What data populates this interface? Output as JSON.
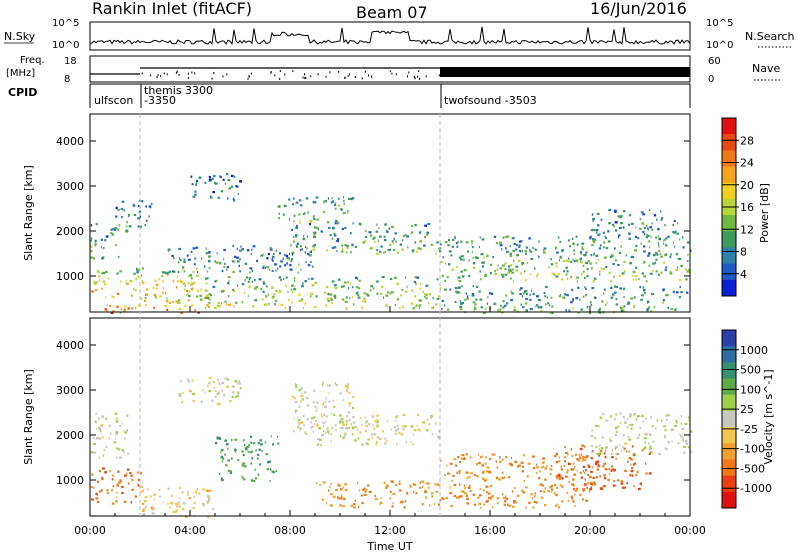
{
  "header": {
    "station": "Rankin Inlet (fitACF)",
    "beam": "Beam 07",
    "date": "16/Jun/2016"
  },
  "top_panels": {
    "nsky_label": "N.Sky",
    "nsearch_label": "N.Search",
    "nsky_ticks": [
      "10^5",
      "10^0"
    ],
    "nsearch_ticks": [
      "10^5",
      "10^0"
    ],
    "freq_label_1": "Freq.",
    "freq_label_2": "[MHz]",
    "freq_ticks": [
      "18",
      "8"
    ],
    "nave_label": "Nave",
    "nave_ticks": [
      "60",
      "0"
    ],
    "cpid_label": "CPID",
    "cpid_segments": [
      {
        "label": "ulfscon",
        "start_h": 0.0,
        "end_h": 2.0
      },
      {
        "label": "themis 3300",
        "start_h": 2.0,
        "end_h": 14.0
      },
      {
        "label": "-3350",
        "start_h": 2.0,
        "end_h": 14.0
      },
      {
        "label": "twofsound -3503",
        "start_h": 14.0,
        "end_h": 24.0
      }
    ]
  },
  "power_colorbar": {
    "label": "Power [dB]",
    "ticks": [
      "4",
      "8",
      "12",
      "16",
      "20",
      "24",
      "28"
    ],
    "colors": [
      "#0a1fd6",
      "#2058c8",
      "#2f7fa8",
      "#3f9a5e",
      "#6fb843",
      "#b8d637",
      "#f0d020",
      "#f4a51c",
      "#f07818",
      "#e84a16",
      "#e01010"
    ]
  },
  "velocity_colorbar": {
    "label": "Velocity [m s^-1]",
    "ticks": [
      "1000",
      "500",
      "100",
      "25",
      "-25",
      "-100",
      "-500",
      "-1000"
    ],
    "colors": [
      "#2b3fa8",
      "#2e6fa0",
      "#3a8f6e",
      "#5faa4a",
      "#9fd04a",
      "#c8c8c0",
      "#f0c850",
      "#f0a030",
      "#f07818",
      "#e84010",
      "#e01010"
    ]
  },
  "chart_data": {
    "type": "heatmap",
    "x_ticks": [
      "00:00",
      "04:00",
      "08:00",
      "12:00",
      "16:00",
      "20:00",
      "00:00"
    ],
    "x_tick_hours": [
      0,
      4,
      8,
      12,
      16,
      20,
      24
    ],
    "xlabel": "Time UT",
    "xlim": [
      0,
      24
    ],
    "panels": [
      {
        "name": "power",
        "ylabel": "Slant Range [km]",
        "y_ticks": [
          "1000",
          "2000",
          "3000",
          "4000"
        ],
        "ylim": [
          200,
          4600
        ],
        "echo_regions": [
          {
            "t0": 0.0,
            "t1": 1.2,
            "r0": 1400,
            "r1": 2200,
            "level": 0.35
          },
          {
            "t0": 0.0,
            "t1": 4.5,
            "r0": 600,
            "r1": 1200,
            "level": 0.7
          },
          {
            "t0": 0.5,
            "t1": 4.8,
            "r0": 200,
            "r1": 600,
            "level": 0.9
          },
          {
            "t0": 1.0,
            "t1": 2.5,
            "r0": 2000,
            "r1": 2700,
            "level": 0.3
          },
          {
            "t0": 4.0,
            "t1": 6.0,
            "r0": 2700,
            "r1": 3300,
            "level": 0.2
          },
          {
            "t0": 7.5,
            "t1": 10.5,
            "r0": 2200,
            "r1": 2800,
            "level": 0.45
          },
          {
            "t0": 8.0,
            "t1": 14.0,
            "r0": 1500,
            "r1": 2200,
            "level": 0.4
          },
          {
            "t0": 3.0,
            "t1": 9.0,
            "r0": 1100,
            "r1": 1700,
            "level": 0.25
          },
          {
            "t0": 4.5,
            "t1": 14.0,
            "r0": 300,
            "r1": 1000,
            "level": 0.55
          },
          {
            "t0": 14.0,
            "t1": 24.0,
            "r0": 900,
            "r1": 1900,
            "level": 0.45
          },
          {
            "t0": 14.0,
            "t1": 24.0,
            "r0": 200,
            "r1": 800,
            "level": 0.35
          },
          {
            "t0": 20.0,
            "t1": 23.5,
            "r0": 1800,
            "r1": 2500,
            "level": 0.3
          }
        ]
      },
      {
        "name": "velocity",
        "ylabel": "Slant Range [km]",
        "y_ticks": [
          "1000",
          "2000",
          "3000",
          "4000"
        ],
        "ylim": [
          200,
          4600
        ],
        "echo_regions": [
          {
            "t0": 0.0,
            "t1": 2.0,
            "r0": 500,
            "r1": 1300,
            "level": -0.6
          },
          {
            "t0": 0.0,
            "t1": 1.5,
            "r0": 1500,
            "r1": 2500,
            "level": 0.0
          },
          {
            "t0": 2.0,
            "t1": 5.0,
            "r0": 200,
            "r1": 900,
            "level": -0.2
          },
          {
            "t0": 5.0,
            "t1": 7.5,
            "r0": 1000,
            "r1": 2000,
            "level": 0.5
          },
          {
            "t0": 3.5,
            "t1": 6.0,
            "r0": 2700,
            "r1": 3300,
            "level": 0.0
          },
          {
            "t0": 8.0,
            "t1": 10.5,
            "r0": 2000,
            "r1": 3200,
            "level": 0.0
          },
          {
            "t0": 9.0,
            "t1": 14.0,
            "r0": 1800,
            "r1": 2500,
            "level": 0.0
          },
          {
            "t0": 9.0,
            "t1": 14.0,
            "r0": 400,
            "r1": 1000,
            "level": -0.5
          },
          {
            "t0": 14.0,
            "t1": 20.0,
            "r0": 400,
            "r1": 1600,
            "level": -0.5
          },
          {
            "t0": 18.5,
            "t1": 22.5,
            "r0": 800,
            "r1": 1800,
            "level": -0.7
          },
          {
            "t0": 20.0,
            "t1": 24.0,
            "r0": 1600,
            "r1": 2500,
            "level": 0.05
          }
        ]
      }
    ]
  }
}
